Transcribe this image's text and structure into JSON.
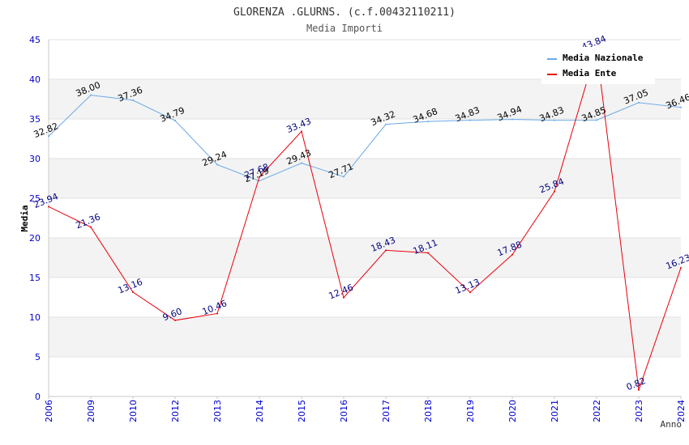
{
  "chart_data": {
    "type": "line",
    "title": "GLORENZA .GLURNS. (c.f.00432110211)",
    "subtitle": "Media Importi",
    "xlabel": "Anno",
    "ylabel": "Media",
    "ylim": [
      0,
      45
    ],
    "yticks": [
      "0",
      "5",
      "10",
      "15",
      "20",
      "25",
      "30",
      "35",
      "40",
      "45"
    ],
    "categories": [
      "2006",
      "2009",
      "2010",
      "2012",
      "2013",
      "2014",
      "2015",
      "2016",
      "2017",
      "2018",
      "2019",
      "2020",
      "2021",
      "2022",
      "2023",
      "2024"
    ],
    "grid": "alternating horizontal bands",
    "legend_position": "top-right",
    "series": [
      {
        "name": "Media Nazionale",
        "color": "#6aa9e6",
        "label_color": "#000000",
        "values": [
          32.82,
          38.0,
          37.36,
          34.79,
          29.24,
          27.19,
          29.43,
          27.71,
          34.32,
          34.68,
          34.83,
          34.94,
          34.83,
          34.85,
          37.05,
          36.46
        ],
        "labels": [
          "32.82",
          "38.00",
          "37.36",
          "34.79",
          "29.24",
          "27.19",
          "29.43",
          "27.71",
          "34.32",
          "34.68",
          "34.83",
          "34.94",
          "34.83",
          "34.85",
          "37.05",
          "36.46"
        ]
      },
      {
        "name": "Media Ente",
        "color": "#e8000b",
        "label_color": "#00007f",
        "values": [
          23.94,
          21.36,
          13.16,
          9.6,
          10.46,
          27.68,
          33.43,
          12.46,
          18.43,
          18.11,
          13.13,
          17.88,
          25.84,
          43.84,
          0.82,
          16.23
        ],
        "labels": [
          "23.94",
          "21.36",
          "13.16",
          "9.60",
          "10.46",
          "27.68",
          "33.43",
          "12.46",
          "18.43",
          "18.11",
          "13.13",
          "17.88",
          "25.84",
          "43.84",
          "0.82",
          "16.23"
        ]
      }
    ]
  }
}
